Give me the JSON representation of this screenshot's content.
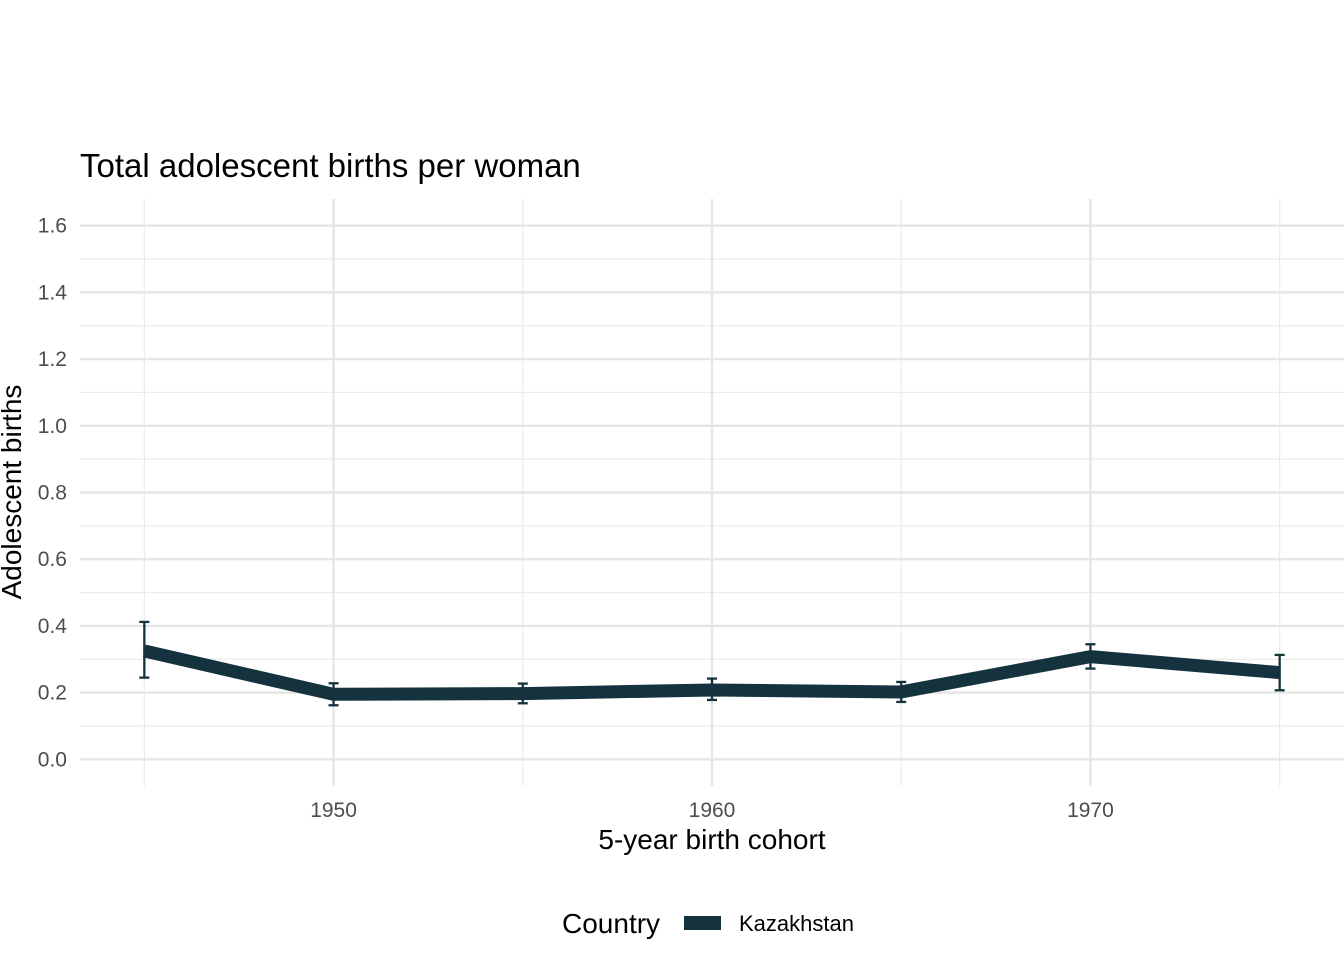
{
  "chart_data": {
    "type": "line",
    "title": "Total adolescent births per woman",
    "xlabel": "5-year birth cohort",
    "ylabel": "Adolescent births",
    "xlim": [
      1943.3,
      1976.7
    ],
    "ylim": [
      -0.08,
      1.68
    ],
    "x_ticks": [
      1950,
      1960,
      1970
    ],
    "x_tick_labels": [
      "1950",
      "1960",
      "1970"
    ],
    "x_minor_ticks": [
      1945,
      1955,
      1965,
      1975
    ],
    "y_ticks": [
      0.0,
      0.2,
      0.4,
      0.6,
      0.8,
      1.0,
      1.2,
      1.4,
      1.6
    ],
    "y_tick_labels": [
      "0.0",
      "0.2",
      "0.4",
      "0.6",
      "0.8",
      "1.0",
      "1.2",
      "1.4",
      "1.6"
    ],
    "y_minor_ticks": [
      0.1,
      0.3,
      0.5,
      0.7,
      0.9,
      1.1,
      1.3,
      1.5
    ],
    "grid": true,
    "legend": {
      "title": "Country",
      "position": "bottom"
    },
    "series": [
      {
        "name": "Kazakhstan",
        "color": "#15333f",
        "x": [
          1945,
          1950,
          1955,
          1960,
          1965,
          1970,
          1975
        ],
        "values": [
          0.325,
          0.195,
          0.197,
          0.208,
          0.202,
          0.308,
          0.26
        ],
        "lower": [
          0.245,
          0.162,
          0.168,
          0.178,
          0.172,
          0.272,
          0.207
        ],
        "upper": [
          0.412,
          0.228,
          0.227,
          0.242,
          0.232,
          0.345,
          0.313
        ]
      }
    ]
  }
}
